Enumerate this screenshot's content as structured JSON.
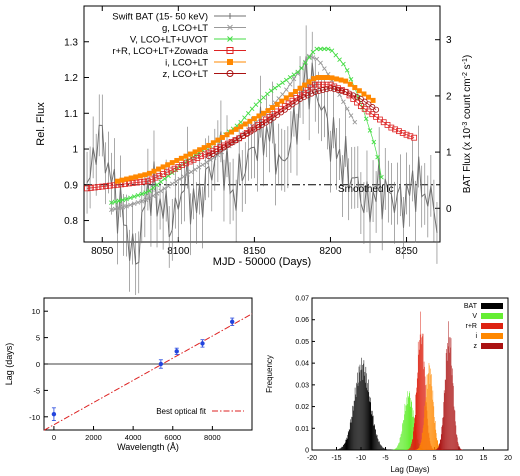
{
  "chart_data": [
    {
      "type": "line",
      "title": "",
      "xlabel": "MJD - 50000 (Days)",
      "ylabel": "Rel. Flux",
      "y2label": "BAT Flux (x 10$-3$ count cm$-2$ s$-1$)",
      "xlim": [
        8038,
        8272
      ],
      "ylim": [
        0.74,
        1.4
      ],
      "y2lim": [
        -0.6,
        3.6
      ],
      "xticks": [
        8050,
        8100,
        8150,
        8200,
        8250
      ],
      "yticks": [
        0.8,
        0.9,
        1,
        1.1,
        1.2,
        1.3
      ],
      "y2ticks": [
        0,
        1,
        2,
        3
      ],
      "legend": "top-left",
      "annotation": "Smoothed lc",
      "reference_line": {
        "y": 0.9,
        "style": "dash-dot"
      },
      "series": [
        {
          "name": "Swift BAT (15- 50 keV)",
          "color": "#707070",
          "axis": "right",
          "x": [
            8040,
            8048,
            8056,
            8064,
            8072,
            8080,
            8088,
            8096,
            8104,
            8112,
            8120,
            8128,
            8136,
            8144,
            8152,
            8160,
            8168,
            8176,
            8184,
            8192,
            8200,
            8208,
            8216,
            8224,
            8232,
            8240,
            8248,
            8256,
            8264,
            8270
          ],
          "y": [
            0.3,
            1.4,
            0.5,
            -0.2,
            -1.0,
            0.4,
            0.1,
            -0.3,
            0.5,
            0.0,
            0.6,
            1.1,
            0.2,
            0.8,
            1.2,
            1.4,
            0.7,
            1.4,
            2.4,
            2.0,
            1.3,
            0.8,
            0.5,
            0.0,
            0.4,
            0.2,
            0.1,
            0.5,
            0.2,
            -0.1
          ]
        },
        {
          "name": "g, LCO+LT",
          "color": "#9a9a9a",
          "axis": "left",
          "x": [
            8056,
            8066,
            8080,
            8095,
            8110,
            8125,
            8140,
            8155,
            8170,
            8180,
            8186,
            8192,
            8200,
            8210,
            8218
          ],
          "y": [
            0.83,
            0.84,
            0.86,
            0.9,
            0.94,
            0.98,
            1.03,
            1.09,
            1.16,
            1.22,
            1.26,
            1.25,
            1.2,
            1.12,
            1.06
          ]
        },
        {
          "name": "V, LCO+LT+UVOT",
          "color": "#44dd44",
          "axis": "left",
          "x": [
            8056,
            8066,
            8080,
            8095,
            8110,
            8125,
            8140,
            8150,
            8160,
            8170,
            8180,
            8190,
            8200,
            8210,
            8220,
            8230,
            8234
          ],
          "y": [
            0.85,
            0.86,
            0.88,
            0.93,
            0.98,
            1.02,
            1.07,
            1.12,
            1.16,
            1.19,
            1.22,
            1.28,
            1.28,
            1.23,
            1.13,
            1.0,
            0.91
          ]
        },
        {
          "name": "r+R, LCO+LT+Zowada",
          "color": "#dd2222",
          "axis": "left",
          "x": [
            8040,
            8060,
            8080,
            8100,
            8110,
            8120,
            8140,
            8160,
            8170,
            8180,
            8190,
            8200,
            8210,
            8220,
            8230,
            8240,
            8250,
            8256
          ],
          "y": [
            0.89,
            0.9,
            0.91,
            0.95,
            0.97,
            0.99,
            1.03,
            1.09,
            1.12,
            1.15,
            1.18,
            1.18,
            1.16,
            1.12,
            1.09,
            1.06,
            1.04,
            1.03
          ]
        },
        {
          "name": "i, LCO+LT",
          "color": "#ff8800",
          "axis": "left",
          "x": [
            8060,
            8080,
            8100,
            8120,
            8140,
            8160,
            8170,
            8180,
            8190,
            8200,
            8210,
            8220,
            8230
          ],
          "y": [
            0.91,
            0.93,
            0.97,
            1.01,
            1.06,
            1.11,
            1.14,
            1.17,
            1.2,
            1.2,
            1.19,
            1.16,
            1.13
          ]
        },
        {
          "name": "z, LCO+LT",
          "color": "#aa1111",
          "axis": "left",
          "x": [
            8120,
            8140,
            8160,
            8170,
            8180,
            8190,
            8200,
            8210,
            8220,
            8230
          ],
          "y": [
            0.98,
            1.03,
            1.08,
            1.11,
            1.14,
            1.16,
            1.17,
            1.16,
            1.14,
            1.11
          ]
        }
      ]
    },
    {
      "type": "scatter",
      "title": "",
      "xlabel": "Wavelength (Å)",
      "ylabel": "Lag (days)",
      "xlim": [
        -500,
        10000
      ],
      "ylim": [
        -12.5,
        12.5
      ],
      "xticks": [
        0,
        2000,
        4000,
        6000,
        8000
      ],
      "yticks": [
        -10,
        -5,
        0,
        5,
        10
      ],
      "legend": "bottom-right",
      "points": [
        {
          "x": 0,
          "y": -9.5,
          "err": 1.2
        },
        {
          "x": 5400,
          "y": 0.0,
          "err": 0.8
        },
        {
          "x": 6200,
          "y": 2.4,
          "err": 0.6
        },
        {
          "x": 7500,
          "y": 3.9,
          "err": 0.7
        },
        {
          "x": 9000,
          "y": 8.0,
          "err": 0.7
        }
      ],
      "fit": {
        "name": "Best optical fit",
        "color": "#dd2222",
        "slope": 0.0021,
        "intercept": -11.5
      }
    },
    {
      "type": "bar",
      "title": "",
      "xlabel": "Lag (Days)",
      "ylabel": "Frequency",
      "xlim": [
        -20,
        20
      ],
      "ylim": [
        0,
        0.07
      ],
      "xticks": [
        -20,
        -15,
        -10,
        -5,
        0,
        5,
        10,
        15,
        20
      ],
      "yticks": [
        0,
        0.01,
        0.02,
        0.03,
        0.04,
        0.05,
        0.06,
        0.07
      ],
      "legend": "top-right",
      "series": [
        {
          "name": "BAT",
          "color": "#000000",
          "mean": -9.8,
          "sigma": 1.6,
          "peak": 0.038
        },
        {
          "name": "V",
          "color": "#66ee33",
          "mean": -0.3,
          "sigma": 1.0,
          "peak": 0.025
        },
        {
          "name": "r+R",
          "color": "#dd2211",
          "mean": 2.2,
          "sigma": 0.8,
          "peak": 0.055
        },
        {
          "name": "i",
          "color": "#ff8800",
          "mean": 3.9,
          "sigma": 0.8,
          "peak": 0.037
        },
        {
          "name": "z",
          "color": "#aa1111",
          "mean": 7.9,
          "sigma": 0.8,
          "peak": 0.052
        }
      ]
    }
  ]
}
